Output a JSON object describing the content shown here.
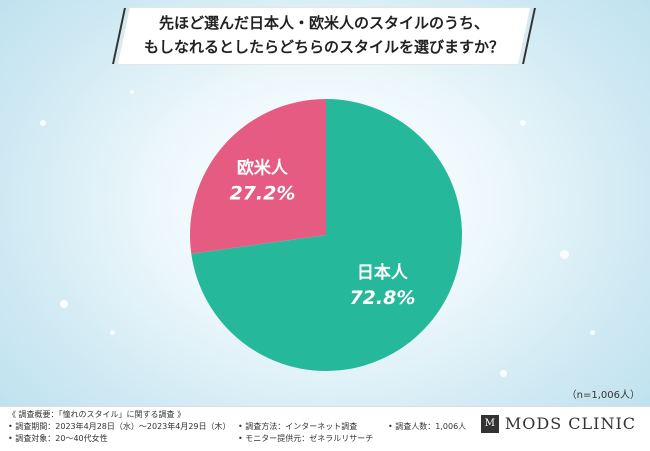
{
  "title": {
    "line1": "先ほど選んだ日本人・欧米人のスタイルのうち、",
    "line2": "もしなれるとしたらどちらのスタイルを選びますか？"
  },
  "chart_data": {
    "type": "pie",
    "slices": [
      {
        "label": "日本人",
        "value": 72.8,
        "value_label": "72.8%",
        "color": "#26b89a"
      },
      {
        "label": "欧米人",
        "value": 27.2,
        "value_label": "27.2%",
        "color": "#e55b82"
      }
    ]
  },
  "sample_size": "（n=1,006人）",
  "footer": {
    "summary": "《 調査概要：「憧れのスタイル」に関する調査 》",
    "period": "• 調査期間：2023年4月28日（水）〜2023年4月29日（木）",
    "target": "• 調査対象：20〜40代女性",
    "method": "• 調査方法：インターネット調査",
    "provider": "• モニター提供元：ゼネラルリサーチ",
    "count": "• 調査人数：1,006人"
  },
  "logo": {
    "mark": "M",
    "text": "MODS CLINIC"
  }
}
